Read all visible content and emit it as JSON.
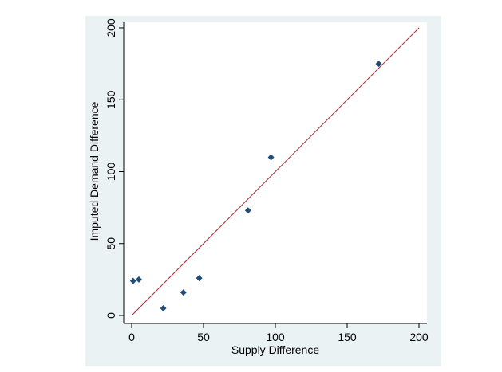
{
  "chart_data": {
    "type": "scatter",
    "title": "",
    "xlabel": "Supply Difference",
    "ylabel": "Imputed Demand Difference",
    "xlim": [
      0,
      200
    ],
    "ylim": [
      0,
      200
    ],
    "x_ticks": [
      0,
      50,
      100,
      150,
      200
    ],
    "y_ticks": [
      0,
      50,
      100,
      150,
      200
    ],
    "grid": false,
    "series": [
      {
        "type": "scatter",
        "marker": "diamond",
        "color": "#1f4e79",
        "points": [
          {
            "x": 1,
            "y": 24
          },
          {
            "x": 5,
            "y": 25
          },
          {
            "x": 22,
            "y": 5
          },
          {
            "x": 36,
            "y": 16
          },
          {
            "x": 47,
            "y": 26
          },
          {
            "x": 81,
            "y": 73
          },
          {
            "x": 97,
            "y": 110
          },
          {
            "x": 172,
            "y": 175
          }
        ]
      },
      {
        "type": "line",
        "color": "#a52a2a",
        "points": [
          {
            "x": 0,
            "y": 0
          },
          {
            "x": 200,
            "y": 200
          }
        ]
      }
    ]
  },
  "colors": {
    "background": "#ffffff",
    "panel": "#eaf2f3",
    "plot_area": "#ffffff",
    "axis": "#000000"
  }
}
